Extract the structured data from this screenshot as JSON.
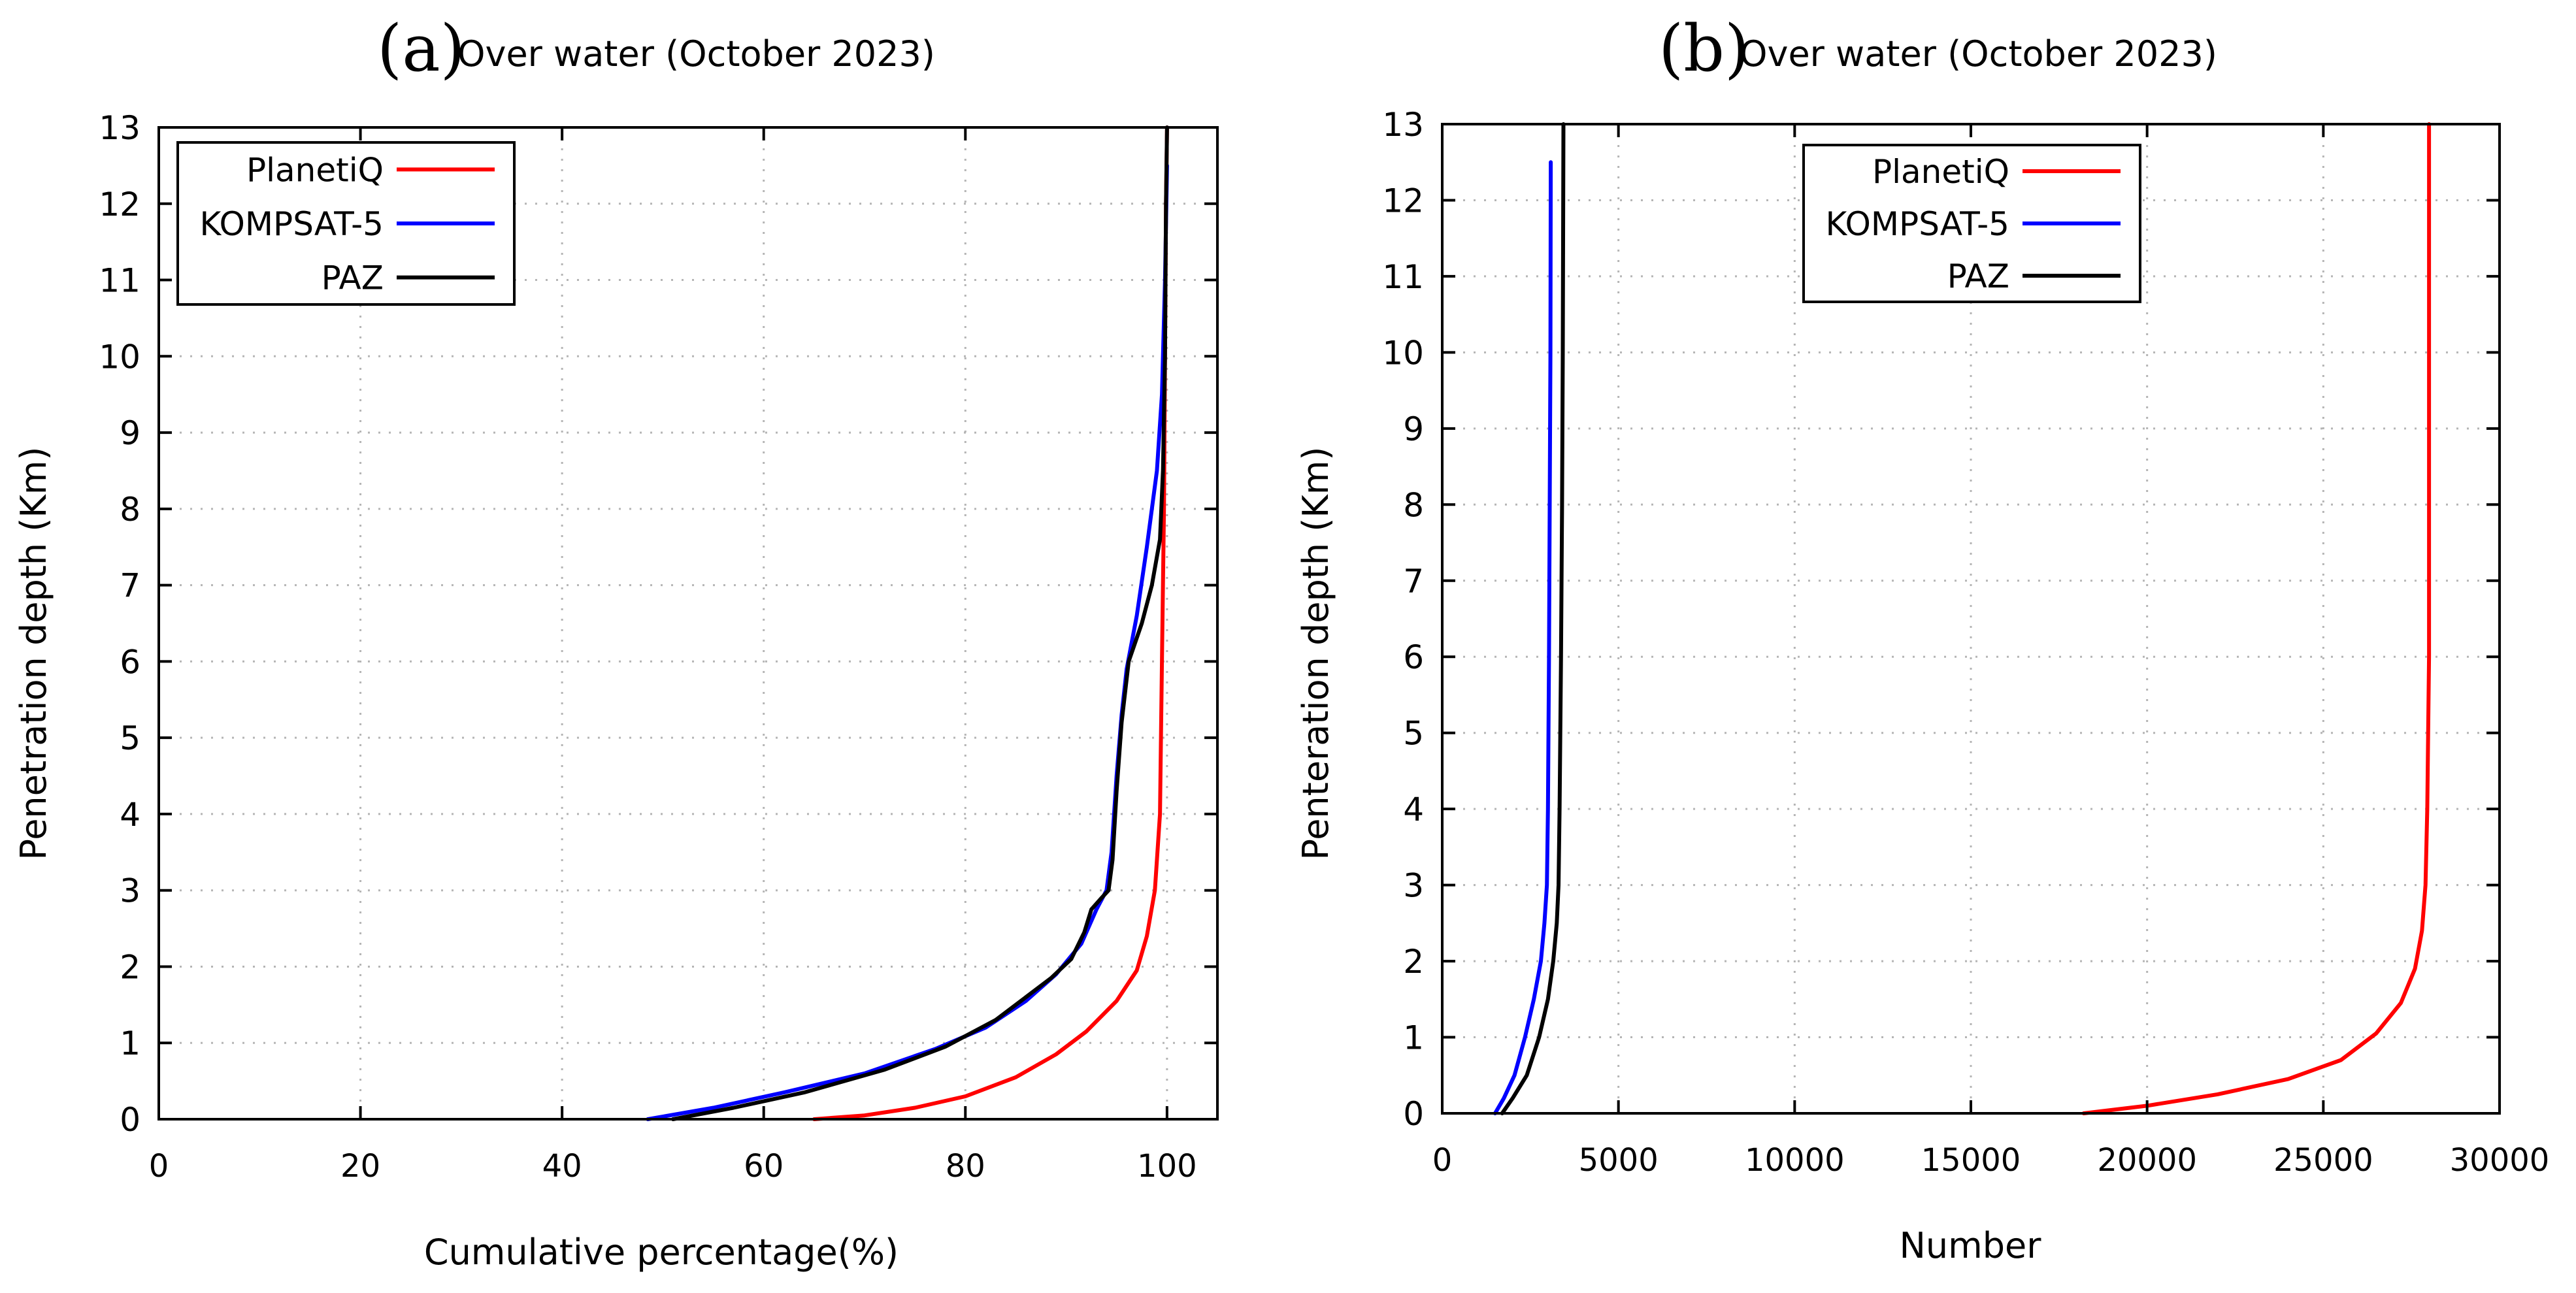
{
  "chart_data": [
    {
      "type": "line",
      "panel_letter": "(a)",
      "title": "Over water (October 2023)",
      "xlabel": "Cumulative percentage(%)",
      "ylabel": "Penetration depth (Km)",
      "xlim": [
        0,
        105
      ],
      "ylim": [
        0,
        13
      ],
      "xticks": [
        0,
        20,
        40,
        60,
        80,
        100
      ],
      "yticks": [
        0,
        1,
        2,
        3,
        4,
        5,
        6,
        7,
        8,
        9,
        10,
        11,
        12,
        13
      ],
      "grid": true,
      "legend_position": "top-left",
      "series": [
        {
          "name": "PlanetiQ",
          "color": "#ff0000",
          "points": [
            [
              65,
              0
            ],
            [
              70,
              0.05
            ],
            [
              75,
              0.15
            ],
            [
              80,
              0.3
            ],
            [
              85,
              0.55
            ],
            [
              89,
              0.85
            ],
            [
              92,
              1.15
            ],
            [
              95,
              1.55
            ],
            [
              97,
              1.95
            ],
            [
              98,
              2.4
            ],
            [
              98.8,
              3.0
            ],
            [
              99.3,
              4.0
            ],
            [
              99.5,
              6
            ],
            [
              99.7,
              8
            ],
            [
              99.8,
              10
            ],
            [
              99.9,
              12
            ],
            [
              100,
              13
            ]
          ]
        },
        {
          "name": "KOMPSAT-5",
          "color": "#0000ff",
          "points": [
            [
              48.5,
              0
            ],
            [
              55,
              0.15
            ],
            [
              62,
              0.35
            ],
            [
              70,
              0.6
            ],
            [
              77,
              0.92
            ],
            [
              82,
              1.2
            ],
            [
              86,
              1.55
            ],
            [
              89,
              1.9
            ],
            [
              91.5,
              2.3
            ],
            [
              93,
              2.75
            ],
            [
              94,
              3.0
            ],
            [
              94.5,
              3.5
            ],
            [
              95,
              4.5
            ],
            [
              95.5,
              5.3
            ],
            [
              96,
              5.9
            ],
            [
              97,
              6.6
            ],
            [
              98,
              7.5
            ],
            [
              99,
              8.5
            ],
            [
              99.5,
              9.5
            ],
            [
              99.8,
              11
            ],
            [
              100,
              12.5
            ]
          ]
        },
        {
          "name": "PAZ",
          "color": "#000000",
          "points": [
            [
              51,
              0
            ],
            [
              57,
              0.15
            ],
            [
              64,
              0.35
            ],
            [
              72,
              0.65
            ],
            [
              78,
              0.95
            ],
            [
              83,
              1.3
            ],
            [
              86,
              1.6
            ],
            [
              88.5,
              1.85
            ],
            [
              90.5,
              2.1
            ],
            [
              91.8,
              2.45
            ],
            [
              92.5,
              2.75
            ],
            [
              93.5,
              2.9
            ],
            [
              94.2,
              3.0
            ],
            [
              94.6,
              3.4
            ],
            [
              95,
              4.3
            ],
            [
              95.5,
              5.2
            ],
            [
              96.2,
              6.0
            ],
            [
              97.5,
              6.5
            ],
            [
              98.5,
              7.0
            ],
            [
              99.3,
              7.6
            ],
            [
              99.6,
              8.5
            ],
            [
              99.8,
              10
            ],
            [
              99.9,
              12
            ],
            [
              100,
              13
            ]
          ]
        }
      ]
    },
    {
      "type": "line",
      "panel_letter": "(b)",
      "title": "Over water (October 2023)",
      "xlabel": "Number",
      "ylabel": "Penteration depth (Km)",
      "xlim": [
        0,
        30000
      ],
      "ylim": [
        0,
        13
      ],
      "xticks": [
        0,
        5000,
        10000,
        15000,
        20000,
        25000,
        30000
      ],
      "yticks": [
        0,
        1,
        2,
        3,
        4,
        5,
        6,
        7,
        8,
        9,
        10,
        11,
        12,
        13
      ],
      "grid": true,
      "legend_position": "top-center",
      "series": [
        {
          "name": "PlanetiQ",
          "color": "#ff0000",
          "points": [
            [
              18200,
              0
            ],
            [
              20000,
              0.1
            ],
            [
              22000,
              0.25
            ],
            [
              24000,
              0.45
            ],
            [
              25500,
              0.7
            ],
            [
              26500,
              1.05
            ],
            [
              27200,
              1.45
            ],
            [
              27600,
              1.9
            ],
            [
              27800,
              2.4
            ],
            [
              27900,
              3.0
            ],
            [
              27950,
              4.0
            ],
            [
              28000,
              6
            ],
            [
              28000,
              9
            ],
            [
              28000,
              13
            ]
          ]
        },
        {
          "name": "KOMPSAT-5",
          "color": "#0000ff",
          "points": [
            [
              1500,
              0
            ],
            [
              1750,
              0.2
            ],
            [
              2050,
              0.5
            ],
            [
              2350,
              1.0
            ],
            [
              2600,
              1.5
            ],
            [
              2800,
              2.0
            ],
            [
              2900,
              2.5
            ],
            [
              2970,
              3.0
            ],
            [
              3000,
              4.0
            ],
            [
              3030,
              6
            ],
            [
              3050,
              8
            ],
            [
              3070,
              10
            ],
            [
              3080,
              12.5
            ]
          ]
        },
        {
          "name": "PAZ",
          "color": "#000000",
          "points": [
            [
              1700,
              0
            ],
            [
              2000,
              0.2
            ],
            [
              2400,
              0.5
            ],
            [
              2750,
              1.0
            ],
            [
              3000,
              1.5
            ],
            [
              3150,
              2.0
            ],
            [
              3250,
              2.5
            ],
            [
              3300,
              3.0
            ],
            [
              3330,
              4.0
            ],
            [
              3370,
              6
            ],
            [
              3400,
              8
            ],
            [
              3420,
              10
            ],
            [
              3440,
              13
            ]
          ]
        }
      ]
    }
  ]
}
